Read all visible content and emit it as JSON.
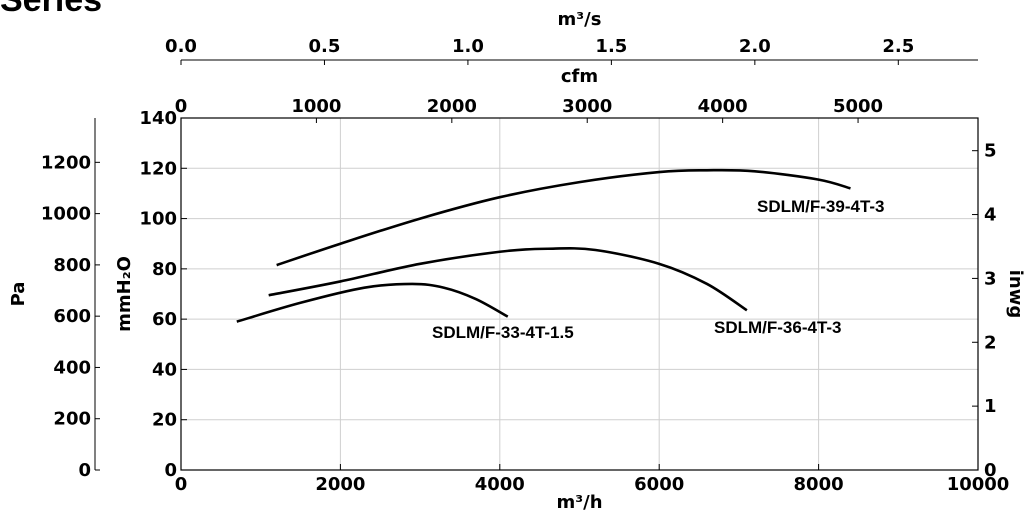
{
  "heading": "Series",
  "chart_data": {
    "type": "line",
    "title": "",
    "xlabel": "m³/h",
    "xlim": [
      0,
      10000
    ],
    "xticks": [
      0,
      2000,
      4000,
      6000,
      8000,
      10000
    ],
    "ylabel": "mmH₂O",
    "ylim": [
      0,
      140
    ],
    "yticks": [
      0,
      20,
      40,
      60,
      80,
      100,
      120,
      140
    ],
    "grid": true,
    "secondary_axes": {
      "top1": {
        "label": "m³/s",
        "ticks": [
          "0.0",
          "0.5",
          "1.0",
          "1.5",
          "2.0",
          "2.5"
        ],
        "values": [
          0,
          0.5,
          1.0,
          1.5,
          2.0,
          2.5
        ]
      },
      "top2": {
        "label": "cfm",
        "ticks": [
          "0",
          "1000",
          "2000",
          "3000",
          "4000",
          "5000"
        ],
        "values": [
          0,
          1000,
          2000,
          3000,
          4000,
          5000
        ]
      },
      "left2": {
        "label": "Pa",
        "ticks": [
          "0",
          "200",
          "400",
          "600",
          "800",
          "1000",
          "1200"
        ],
        "values": [
          0,
          200,
          400,
          600,
          800,
          1000,
          1200
        ]
      },
      "right": {
        "label": "inwg",
        "ticks": [
          "0",
          "1",
          "2",
          "3",
          "4",
          "5"
        ],
        "values": [
          0,
          1,
          2,
          3,
          4,
          5
        ]
      }
    },
    "series": [
      {
        "name": "SDLM/F-39-4T-3",
        "x": [
          1200,
          2000,
          3000,
          4000,
          5000,
          6000,
          6600,
          7200,
          8000,
          8400
        ],
        "y": [
          81.5,
          90,
          100,
          108.5,
          114.5,
          118.5,
          119.2,
          118.8,
          115.5,
          112
        ]
      },
      {
        "name": "SDLM/F-36-4T-3",
        "x": [
          1100,
          2000,
          3000,
          4000,
          4600,
          5200,
          6000,
          6600,
          7100
        ],
        "y": [
          69.5,
          75,
          82,
          86.8,
          88,
          87.5,
          82,
          74,
          63.5
        ]
      },
      {
        "name": "SDLM/F-33-4T-1.5",
        "x": [
          700,
          1500,
          2300,
          2900,
          3300,
          3700,
          4100
        ],
        "y": [
          59,
          66.5,
          72.5,
          74,
          72.5,
          68,
          61
        ]
      }
    ]
  }
}
